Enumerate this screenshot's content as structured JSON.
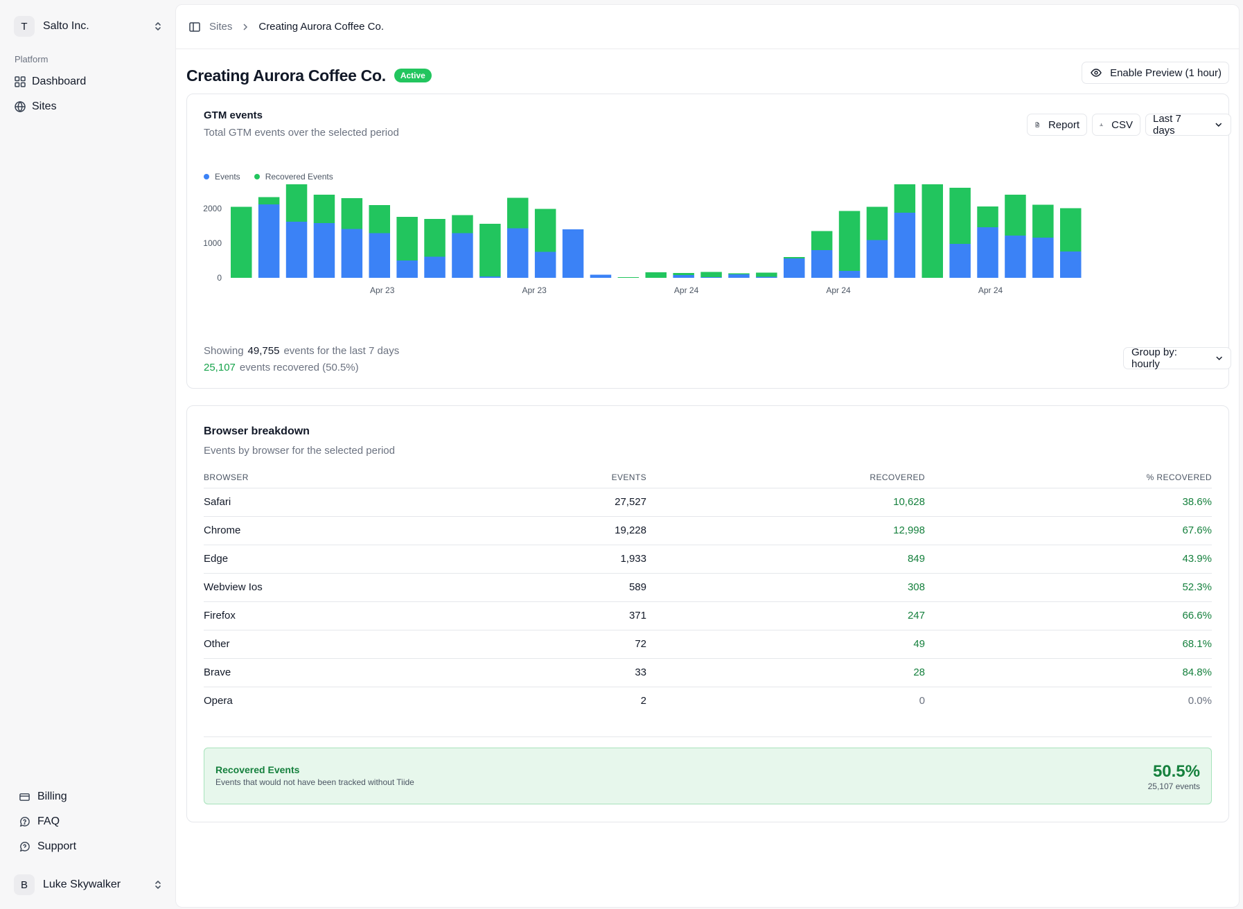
{
  "sidebar": {
    "org": {
      "initial": "T",
      "name": "Salto Inc."
    },
    "section_label": "Platform",
    "nav": [
      {
        "label": "Dashboard",
        "icon": "dashboard-grid-icon"
      },
      {
        "label": "Sites",
        "icon": "globe-icon"
      }
    ],
    "bottom": [
      {
        "label": "Billing",
        "icon": "credit-card-icon"
      },
      {
        "label": "FAQ",
        "icon": "help-chat-icon"
      },
      {
        "label": "Support",
        "icon": "support-chat-icon"
      }
    ],
    "user": {
      "initial": "B",
      "name": "Luke Skywalker"
    }
  },
  "breadcrumb": {
    "parent": "Sites",
    "current": "Creating Aurora Coffee Co."
  },
  "page": {
    "title": "Creating Aurora Coffee Co.",
    "status": "Active",
    "preview_button": "Enable Preview (1 hour)"
  },
  "events_card": {
    "title": "GTM events",
    "subtitle": "Total GTM events over the selected period",
    "report_button": "Report",
    "csv_button": "CSV",
    "range_select": "Last 7 days",
    "group_select": "Group by: hourly",
    "summary": {
      "prefix": "Showing",
      "total": "49,755",
      "suffix": "events for the last 7 days",
      "recovered": "25,107",
      "recovered_suffix": "events recovered (50.5%)"
    }
  },
  "chart_data": {
    "type": "bar",
    "stacked": true,
    "colors": {
      "Events": "#3b82f6",
      "Recovered Events": "#22c55e"
    },
    "legend": [
      "Events",
      "Recovered Events"
    ],
    "legend_position": "top-left",
    "yticks": [
      0,
      1000,
      2000
    ],
    "ylim": [
      0,
      2800
    ],
    "xtick_labels": [
      {
        "index": 5.5,
        "label": "Apr 23"
      },
      {
        "index": 11,
        "label": "Apr 23"
      },
      {
        "index": 16.5,
        "label": "Apr 24"
      },
      {
        "index": 22,
        "label": "Apr 24"
      },
      {
        "index": 27.5,
        "label": "Apr 24"
      }
    ],
    "series": [
      {
        "name": "Events",
        "values": [
          0,
          2120,
          1620,
          1580,
          1410,
          1290,
          500,
          610,
          1290,
          40,
          1430,
          750,
          1400,
          90,
          0,
          0,
          80,
          20,
          100,
          30,
          560,
          800,
          200,
          1090,
          1880,
          0,
          980,
          1460,
          1220,
          1160,
          760
        ]
      },
      {
        "name": "Recovered Events",
        "values": [
          2050,
          210,
          1100,
          820,
          890,
          810,
          1260,
          1090,
          520,
          1520,
          880,
          1240,
          0,
          0,
          20,
          160,
          60,
          150,
          30,
          120,
          40,
          550,
          1730,
          960,
          830,
          2780,
          1620,
          600,
          1180,
          950,
          1250
        ]
      }
    ]
  },
  "browser_card": {
    "title": "Browser breakdown",
    "subtitle": "Events by browser for the selected period",
    "columns": [
      "BROWSER",
      "EVENTS",
      "RECOVERED",
      "% RECOVERED"
    ],
    "rows": [
      {
        "browser": "Safari",
        "events": "27,527",
        "recovered": "10,628",
        "pct": "38.6%"
      },
      {
        "browser": "Chrome",
        "events": "19,228",
        "recovered": "12,998",
        "pct": "67.6%"
      },
      {
        "browser": "Edge",
        "events": "1,933",
        "recovered": "849",
        "pct": "43.9%"
      },
      {
        "browser": "Webview Ios",
        "events": "589",
        "recovered": "308",
        "pct": "52.3%"
      },
      {
        "browser": "Firefox",
        "events": "371",
        "recovered": "247",
        "pct": "66.6%"
      },
      {
        "browser": "Other",
        "events": "72",
        "recovered": "49",
        "pct": "68.1%"
      },
      {
        "browser": "Brave",
        "events": "33",
        "recovered": "28",
        "pct": "84.8%"
      },
      {
        "browser": "Opera",
        "events": "2",
        "recovered": "0",
        "pct": "0.0%"
      }
    ],
    "recovered_box": {
      "title": "Recovered Events",
      "subtitle": "Events that would not have been tracked without Tiide",
      "percent": "50.5%",
      "count": "25,107 events"
    }
  }
}
